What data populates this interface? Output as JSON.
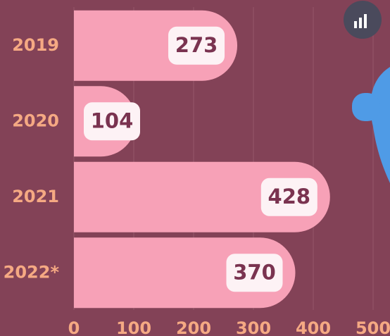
{
  "chart_data": {
    "type": "bar",
    "orientation": "horizontal",
    "categories": [
      "2019",
      "2020",
      "2021",
      "2022*"
    ],
    "values": [
      273,
      104,
      428,
      370
    ],
    "color": "#f7a1b7",
    "xlim": [
      0,
      500
    ],
    "xticks": [
      0,
      100,
      200,
      300,
      400,
      500
    ],
    "grid": true
  }
}
